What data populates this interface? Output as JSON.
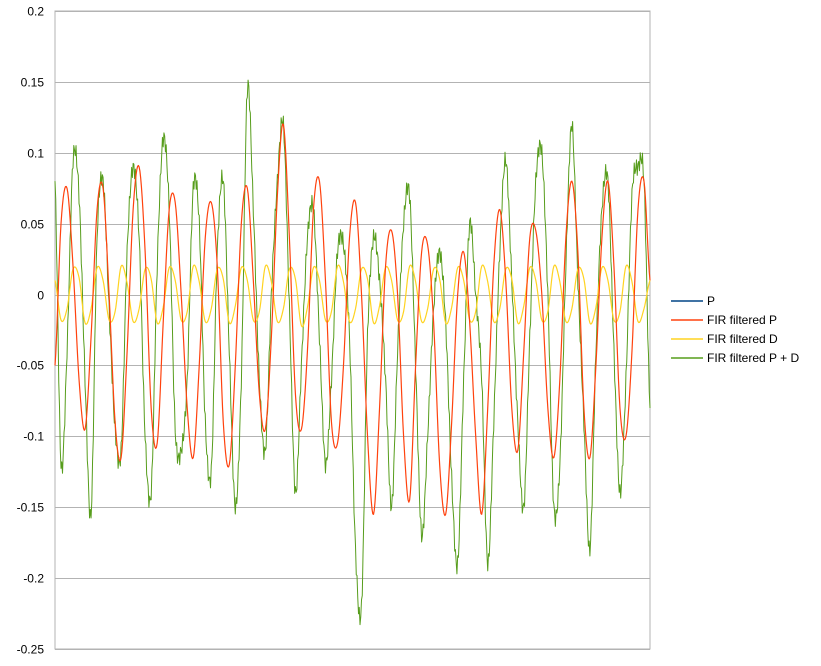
{
  "chart_data": {
    "type": "line",
    "title": "",
    "xlabel": "",
    "ylabel": "",
    "ylim": [
      -0.25,
      0.2
    ],
    "y_ticks": [
      "0.2",
      "0.15",
      "0.1",
      "0.05",
      "0",
      "-0.05",
      "-0.1",
      "-0.15",
      "-0.2",
      "-0.25"
    ],
    "y_tick_values": [
      0.2,
      0.15,
      0.1,
      0.05,
      0,
      -0.05,
      -0.1,
      -0.15,
      -0.2,
      -0.25
    ],
    "grid": "horizontal",
    "legend_position": "right",
    "n_points": 100,
    "series": [
      {
        "name": "P",
        "color": "#004586",
        "values": []
      },
      {
        "name": "FIR filtered P",
        "color": "#ff420e",
        "values": [
          -0.05,
          0.05,
          0.075,
          0.02,
          -0.06,
          -0.095,
          -0.03,
          0.06,
          0.075,
          0.0,
          -0.09,
          -0.115,
          -0.04,
          0.06,
          0.09,
          0.03,
          -0.08,
          -0.105,
          -0.02,
          0.06,
          0.065,
          0.0,
          -0.08,
          -0.115,
          -0.05,
          0.04,
          0.065,
          0.02,
          -0.09,
          -0.12,
          -0.05,
          0.05,
          0.075,
          0.01,
          -0.07,
          -0.095,
          -0.03,
          0.07,
          0.12,
          0.04,
          -0.07,
          -0.095,
          -0.04,
          0.06,
          0.08,
          0.01,
          -0.09,
          -0.105,
          -0.05,
          0.04,
          0.065,
          0.0,
          -0.1,
          -0.155,
          -0.08,
          0.02,
          0.045,
          0.0,
          -0.1,
          -0.145,
          -0.05,
          0.03,
          0.035,
          -0.02,
          -0.12,
          -0.155,
          -0.09,
          0.0,
          0.03,
          -0.02,
          -0.1,
          -0.155,
          -0.08,
          0.02,
          0.06,
          0.01,
          -0.08,
          -0.11,
          -0.04,
          0.04,
          0.045,
          0.0,
          -0.08,
          -0.115,
          -0.06,
          0.04,
          0.08,
          0.03,
          -0.08,
          -0.115,
          -0.05,
          0.04,
          0.08,
          0.02,
          -0.08,
          -0.1,
          -0.04,
          0.06,
          0.08,
          0.01
        ]
      },
      {
        "name": "FIR filtered D",
        "color": "#ffd320",
        "values": [
          0.01,
          -0.018,
          -0.01,
          0.018,
          0.012,
          -0.02,
          -0.01,
          0.019,
          0.01,
          -0.018,
          -0.012,
          0.02,
          0.008,
          -0.019,
          -0.01,
          0.018,
          0.011,
          -0.02,
          -0.009,
          0.019,
          0.01,
          -0.018,
          -0.012,
          0.02,
          0.009,
          -0.019,
          -0.01,
          0.018,
          0.011,
          -0.02,
          -0.008,
          0.019,
          0.01,
          -0.018,
          -0.012,
          0.02,
          0.009,
          -0.019,
          -0.01,
          0.018,
          0.011,
          -0.022,
          -0.009,
          0.019,
          0.01,
          -0.018,
          -0.012,
          0.02,
          0.009,
          -0.019,
          -0.01,
          0.018,
          0.011,
          -0.02,
          -0.008,
          0.019,
          0.01,
          -0.018,
          -0.012,
          0.02,
          0.009,
          -0.019,
          -0.01,
          0.018,
          0.011,
          -0.02,
          -0.009,
          0.019,
          0.01,
          -0.018,
          -0.012,
          0.02,
          0.009,
          -0.019,
          -0.01,
          0.018,
          0.011,
          -0.02,
          -0.008,
          0.019,
          0.01,
          -0.018,
          -0.012,
          0.02,
          0.009,
          -0.019,
          -0.01,
          0.018,
          0.011,
          -0.02,
          -0.009,
          0.019,
          0.01,
          -0.018,
          -0.012,
          0.02,
          0.009,
          -0.019,
          -0.01,
          0.01
        ]
      },
      {
        "name": "FIR filtered P + D",
        "color": "#579d1c",
        "values": [
          0.08,
          -0.12,
          -0.04,
          0.095,
          0.07,
          -0.06,
          -0.155,
          0.04,
          0.08,
          -0.01,
          -0.095,
          -0.11,
          0.03,
          0.09,
          0.04,
          -0.1,
          -0.14,
          0.02,
          0.11,
          0.06,
          -0.095,
          -0.11,
          -0.06,
          0.075,
          0.05,
          -0.09,
          -0.125,
          0.03,
          0.08,
          -0.04,
          -0.15,
          -0.06,
          0.145,
          0.06,
          -0.06,
          -0.11,
          0.0,
          0.08,
          0.12,
          -0.01,
          -0.14,
          -0.05,
          0.04,
          0.06,
          -0.03,
          -0.12,
          -0.06,
          0.03,
          0.035,
          -0.03,
          -0.18,
          -0.22,
          -0.03,
          0.04,
          0.01,
          -0.06,
          -0.15,
          -0.04,
          0.05,
          0.07,
          -0.05,
          -0.17,
          -0.1,
          -0.01,
          0.03,
          -0.02,
          -0.13,
          -0.19,
          -0.06,
          0.05,
          0.0,
          -0.06,
          -0.19,
          -0.09,
          0.03,
          0.095,
          0.01,
          -0.09,
          -0.15,
          -0.03,
          0.08,
          0.1,
          0.0,
          -0.15,
          -0.12,
          0.02,
          0.12,
          0.01,
          -0.09,
          -0.18,
          -0.04,
          0.06,
          0.08,
          -0.04,
          -0.14,
          -0.06,
          0.07,
          0.09,
          0.08,
          -0.08
        ]
      }
    ]
  }
}
